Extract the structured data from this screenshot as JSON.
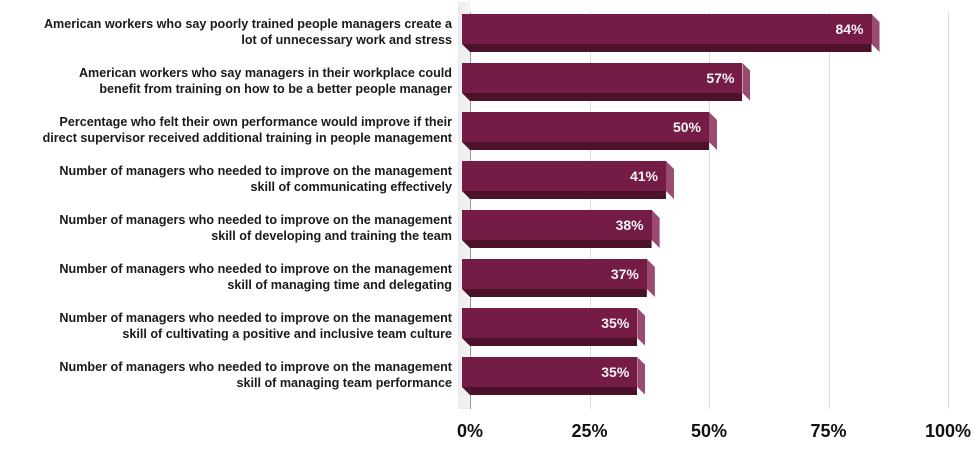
{
  "chart_data": {
    "type": "bar",
    "orientation": "horizontal",
    "style": "3d",
    "title": "",
    "xlabel": "",
    "ylabel": "",
    "xlim": [
      0,
      100
    ],
    "grid": true,
    "legend": null,
    "bar_color": "#741c45",
    "categories": [
      "American workers who say poorly trained people managers create a lot of unnecessary work and stress",
      "American workers who say managers in their workplace could benefit from training on how to be a better people manager",
      "Percentage who felt their own performance would improve if their direct supervisor received additional training in people management",
      "Number of managers who needed to improve on the management skill of communicating effectively",
      "Number of managers who needed to improve on the management skill of developing and training the team",
      "Number of managers who needed to improve on the management skill of managing time and delegating",
      "Number of managers who needed to improve on the management skill of cultivating a positive and inclusive team culture",
      "Number of managers who needed to improve on the management skill of managing team performance"
    ],
    "values": [
      84,
      57,
      50,
      41,
      38,
      37,
      35,
      35
    ],
    "value_labels": [
      "84%",
      "57%",
      "50%",
      "41%",
      "38%",
      "37%",
      "35%",
      "35%"
    ],
    "x_ticks": [
      "0%",
      "25%",
      "50%",
      "75%",
      "100%"
    ]
  },
  "rows": [
    {
      "line1": "American workers who say poorly trained people managers create a",
      "line2": "lot of unnecessary work and stress",
      "value": 84,
      "label": "84%"
    },
    {
      "line1": "American workers who say managers in their workplace could",
      "line2": "benefit from training on how to be a better people manager",
      "value": 57,
      "label": "57%"
    },
    {
      "line1": "Percentage who felt their own performance would improve if their",
      "line2": "direct supervisor received additional training in people management",
      "value": 50,
      "label": "50%"
    },
    {
      "line1": "Number of managers who needed to improve on the management",
      "line2": "skill of communicating effectively",
      "value": 41,
      "label": "41%"
    },
    {
      "line1": "Number of managers who needed to improve on the management",
      "line2": "skill of developing and training the team",
      "value": 38,
      "label": "38%"
    },
    {
      "line1": "Number of managers who needed to improve on the management",
      "line2": "skill of managing time and delegating",
      "value": 37,
      "label": "37%"
    },
    {
      "line1": "Number of managers who needed to improve on the management",
      "line2": "skill of cultivating a positive and inclusive team culture",
      "value": 35,
      "label": "35%"
    },
    {
      "line1": "Number of managers who needed to improve on the management",
      "line2": "skill of managing team performance",
      "value": 35,
      "label": "35%"
    }
  ],
  "axis": {
    "ticks": [
      {
        "label": "0%",
        "pct": 0
      },
      {
        "label": "25%",
        "pct": 25
      },
      {
        "label": "50%",
        "pct": 50
      },
      {
        "label": "75%",
        "pct": 75
      },
      {
        "label": "100%",
        "pct": 100
      }
    ]
  }
}
